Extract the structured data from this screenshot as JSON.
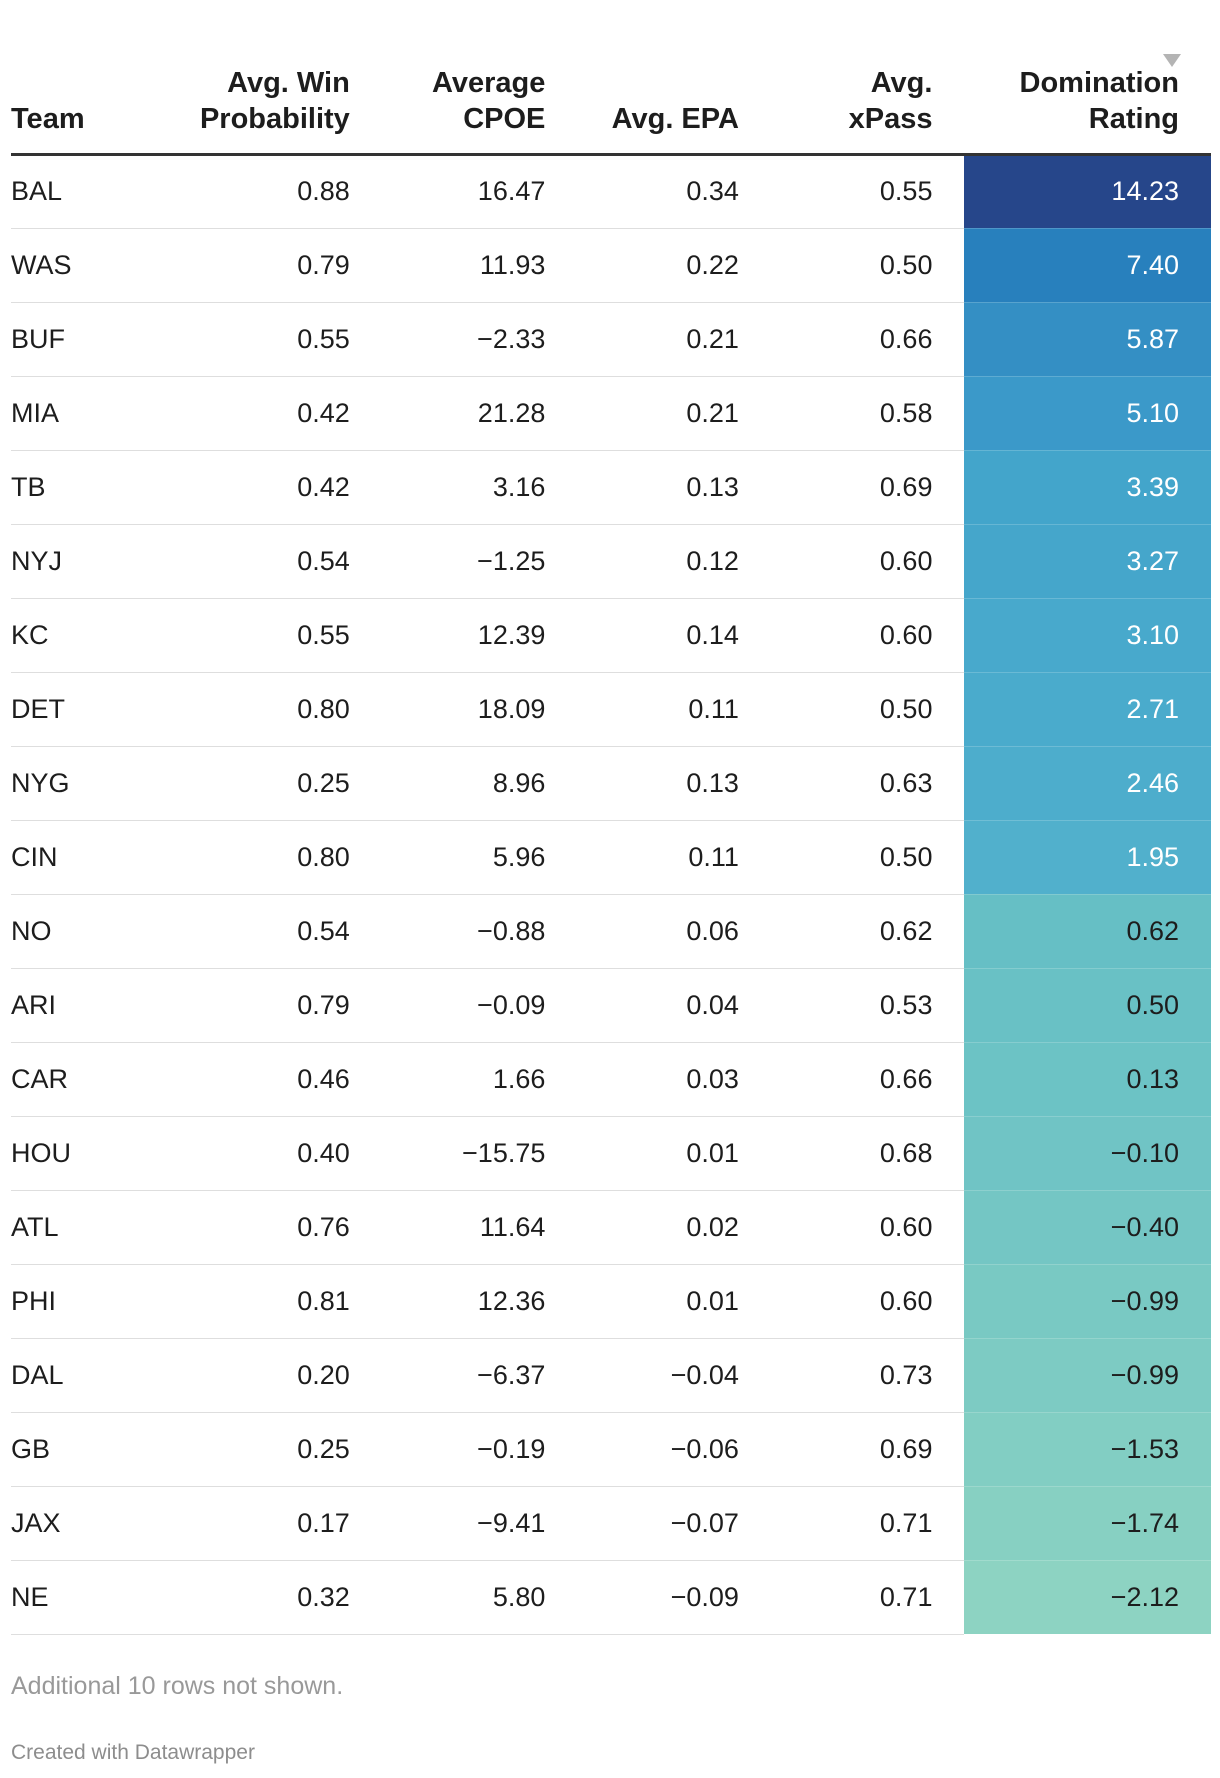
{
  "chart_data": {
    "type": "table",
    "columns": [
      "Team",
      "Avg. Win Probability",
      "Average CPOE",
      "Avg. EPA",
      "Avg. xPass",
      "Domination Rating"
    ],
    "header_lines": [
      [
        "Team"
      ],
      [
        "Avg. Win",
        "Probability"
      ],
      [
        "Average",
        "CPOE"
      ],
      [
        "Avg. EPA"
      ],
      [
        "Avg.",
        "xPass"
      ],
      [
        "Domination",
        "Rating"
      ]
    ],
    "sorted_by": "Domination Rating",
    "sort_order": "descending",
    "rows": [
      [
        "BAL",
        "0.88",
        "16.47",
        "0.34",
        "0.55",
        "14.23"
      ],
      [
        "WAS",
        "0.79",
        "11.93",
        "0.22",
        "0.50",
        "7.40"
      ],
      [
        "BUF",
        "0.55",
        "−2.33",
        "0.21",
        "0.66",
        "5.87"
      ],
      [
        "MIA",
        "0.42",
        "21.28",
        "0.21",
        "0.58",
        "5.10"
      ],
      [
        "TB",
        "0.42",
        "3.16",
        "0.13",
        "0.69",
        "3.39"
      ],
      [
        "NYJ",
        "0.54",
        "−1.25",
        "0.12",
        "0.60",
        "3.27"
      ],
      [
        "KC",
        "0.55",
        "12.39",
        "0.14",
        "0.60",
        "3.10"
      ],
      [
        "DET",
        "0.80",
        "18.09",
        "0.11",
        "0.50",
        "2.71"
      ],
      [
        "NYG",
        "0.25",
        "8.96",
        "0.13",
        "0.63",
        "2.46"
      ],
      [
        "CIN",
        "0.80",
        "5.96",
        "0.11",
        "0.50",
        "1.95"
      ],
      [
        "NO",
        "0.54",
        "−0.88",
        "0.06",
        "0.62",
        "0.62"
      ],
      [
        "ARI",
        "0.79",
        "−0.09",
        "0.04",
        "0.53",
        "0.50"
      ],
      [
        "CAR",
        "0.46",
        "1.66",
        "0.03",
        "0.66",
        "0.13"
      ],
      [
        "HOU",
        "0.40",
        "−15.75",
        "0.01",
        "0.68",
        "−0.10"
      ],
      [
        "ATL",
        "0.76",
        "11.64",
        "0.02",
        "0.60",
        "−0.40"
      ],
      [
        "PHI",
        "0.81",
        "12.36",
        "0.01",
        "0.60",
        "−0.99"
      ],
      [
        "DAL",
        "0.20",
        "−6.37",
        "−0.04",
        "0.73",
        "−0.99"
      ],
      [
        "GB",
        "0.25",
        "−0.19",
        "−0.06",
        "0.69",
        "−1.53"
      ],
      [
        "JAX",
        "0.17",
        "−9.41",
        "−0.07",
        "0.71",
        "−1.74"
      ],
      [
        "NE",
        "0.32",
        "5.80",
        "−0.09",
        "0.71",
        "−2.12"
      ]
    ],
    "rating_colors": [
      "#26468a",
      "#2880bd",
      "#348fc4",
      "#3b99c9",
      "#43a5cb",
      "#45a6cb",
      "#48a9cc",
      "#4aabcc",
      "#4dadcc",
      "#51b0cc",
      "#66bfc5",
      "#69c1c5",
      "#6cc3c5",
      "#70c4c5",
      "#74c6c4",
      "#79c9c3",
      "#7dcbc3",
      "#82cec3",
      "#87d0c2",
      "#8dd3c2"
    ],
    "rating_text_light_rows": 10
  },
  "notes": "Additional 10 rows not shown.",
  "credit": "Created with Datawrapper",
  "colors": {
    "text": "#1d1d1d",
    "muted": "#999999",
    "header_rule": "#333333",
    "row_rule": "#dedede"
  }
}
